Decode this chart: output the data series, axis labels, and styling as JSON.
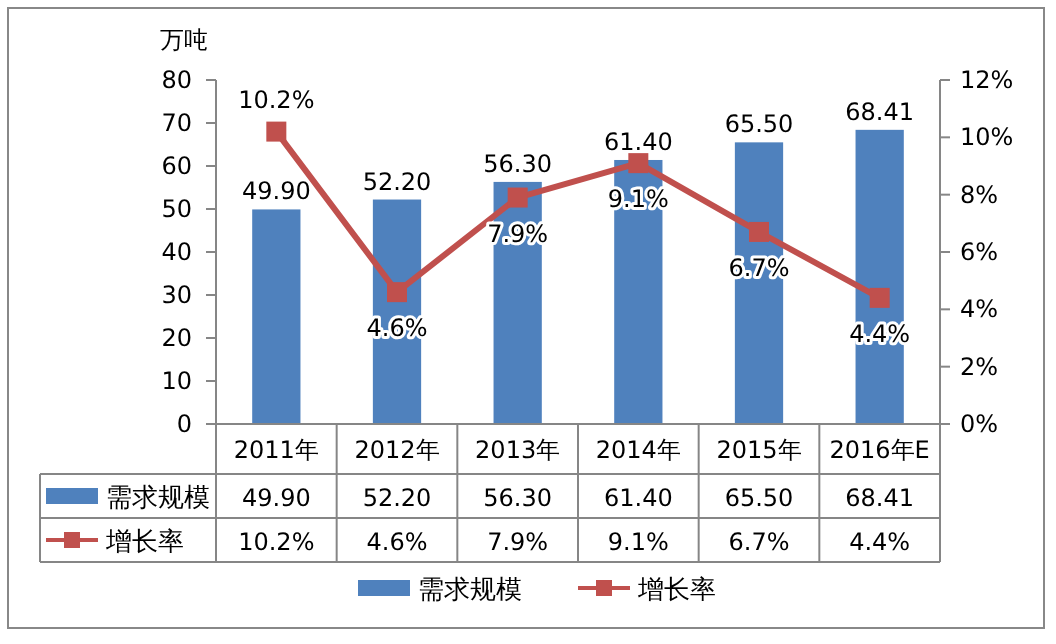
{
  "chart_data": {
    "type": "bar",
    "ylabel": "万吨",
    "categories": [
      "2011年",
      "2012年",
      "2013年",
      "2014年",
      "2015年",
      "2016年E"
    ],
    "series": [
      {
        "name": "需求规模",
        "color": "#4f81bd",
        "values": [
          49.9,
          52.2,
          56.3,
          61.4,
          65.5,
          68.41
        ],
        "value_labels": [
          "49.90",
          "52.20",
          "56.30",
          "61.40",
          "65.50",
          "68.41"
        ]
      },
      {
        "name": "增长率",
        "type": "line",
        "axis": "y2",
        "color": "#c0504d",
        "marker": "square",
        "values": [
          10.2,
          4.6,
          7.9,
          9.1,
          6.7,
          4.4
        ],
        "value_labels": [
          "10.2%",
          "4.6%",
          "7.9%",
          "9.1%",
          "6.7%",
          "4.4%"
        ]
      }
    ],
    "ylim": [
      0,
      80
    ],
    "yticks": [
      0,
      10,
      20,
      30,
      40,
      50,
      60,
      70,
      80
    ],
    "y2lim": [
      0,
      12
    ],
    "y2ticks": [
      {
        "value": 0,
        "label": "0%"
      },
      {
        "value": 2,
        "label": "2%"
      },
      {
        "value": 4,
        "label": "4%"
      },
      {
        "value": 6,
        "label": "6%"
      },
      {
        "value": 8,
        "label": "8%"
      },
      {
        "value": 10,
        "label": "10%"
      },
      {
        "value": 12,
        "label": "12%"
      }
    ],
    "legend": "bottom",
    "grid": false
  }
}
